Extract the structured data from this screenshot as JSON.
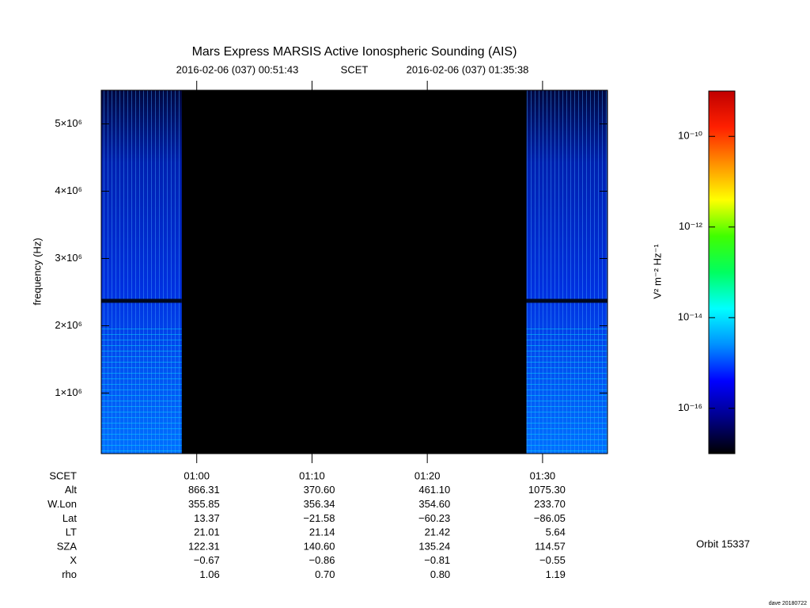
{
  "chart_data": {
    "type": "spectrogram",
    "title": "Mars Express MARSIS Active Ionospheric Sounding (AIS)",
    "start_time": "2016-02-06 (037) 00:51:43",
    "time_system": "SCET",
    "end_time": "2016-02-06 (037) 01:35:38",
    "y_label": "frequency (Hz)",
    "xlim": [
      51.717,
      95.633
    ],
    "xticks": [
      {
        "value": 60,
        "label": "01:00"
      },
      {
        "value": 70,
        "label": "01:10"
      },
      {
        "value": 80,
        "label": "01:20"
      },
      {
        "value": 90,
        "label": "01:30"
      }
    ],
    "ylim": [
      100000,
      5500000
    ],
    "yticks": [
      {
        "value": 1000000,
        "label": "1×10⁶"
      },
      {
        "value": 2000000,
        "label": "2×10⁶"
      },
      {
        "value": 3000000,
        "label": "3×10⁶"
      },
      {
        "value": 4000000,
        "label": "4×10⁶"
      },
      {
        "value": 5000000,
        "label": "5×10⁶"
      }
    ],
    "data_segments": [
      [
        51.717,
        58.7
      ],
      [
        88.6,
        95.633
      ]
    ],
    "colorbar": {
      "label": "V² m⁻² Hz⁻¹",
      "log_scale": true,
      "lim": [
        1e-17,
        1e-09
      ],
      "ticks": [
        {
          "value": 1e-16,
          "label": "10⁻¹⁶"
        },
        {
          "value": 1e-14,
          "label": "10⁻¹⁴"
        },
        {
          "value": 1e-12,
          "label": "10⁻¹²"
        },
        {
          "value": 1e-10,
          "label": "10⁻¹⁰"
        }
      ],
      "colormap": [
        "#000000",
        "#00008a",
        "#0000ff",
        "#0090ff",
        "#00ffff",
        "#00ff60",
        "#40ff00",
        "#ffff00",
        "#ff9000",
        "#ff2000",
        "#c00000"
      ]
    }
  },
  "ephemeris": {
    "time_label": "SCET",
    "rows": [
      {
        "label": "Alt",
        "values": [
          "866.31",
          "370.60",
          "461.10",
          "1075.30"
        ]
      },
      {
        "label": "W.Lon",
        "values": [
          "355.85",
          "356.34",
          "354.60",
          "233.70"
        ]
      },
      {
        "label": "Lat",
        "values": [
          "13.37",
          "−21.58",
          "−60.23",
          "−86.05"
        ]
      },
      {
        "label": "LT",
        "values": [
          "21.01",
          "21.14",
          "21.42",
          "5.64"
        ]
      },
      {
        "label": "SZA",
        "values": [
          "122.31",
          "140.60",
          "135.24",
          "114.57"
        ]
      },
      {
        "label": "X",
        "values": [
          "−0.67",
          "−0.86",
          "−0.81",
          "−0.55"
        ]
      },
      {
        "label": "rho",
        "values": [
          "1.06",
          "0.70",
          "0.80",
          "1.19"
        ]
      }
    ]
  },
  "orbit": "Orbit 15337",
  "footer": "dave 20180722"
}
